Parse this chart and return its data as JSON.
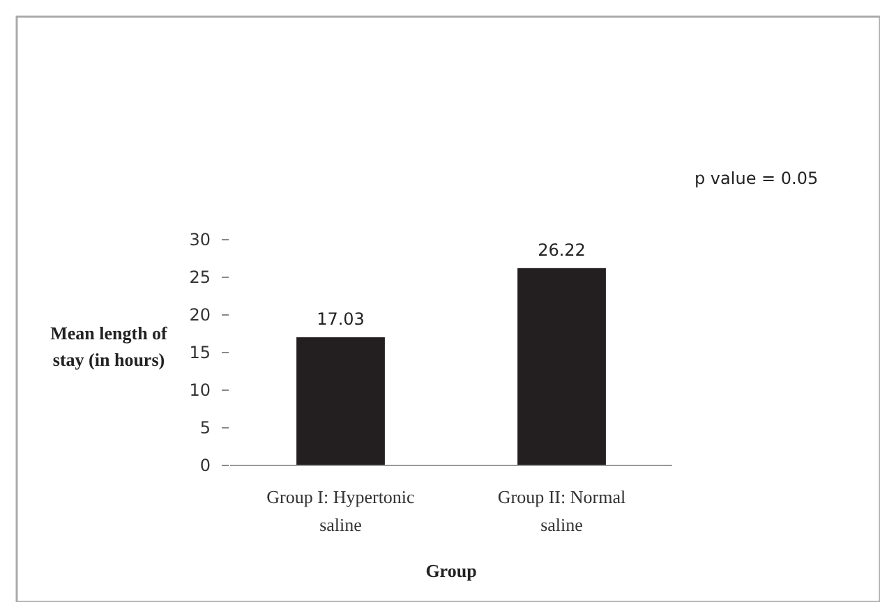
{
  "chart_data": {
    "type": "bar",
    "xlabel": "Group",
    "ylabel": "Mean length of stay (in hours)",
    "categories": [
      "Group I: Hypertonic saline",
      "Group II: Normal saline"
    ],
    "values": [
      17.03,
      26.22
    ],
    "color": "#231f20",
    "ylim": [
      0,
      30
    ],
    "yticks": [
      0,
      5,
      10,
      15,
      20,
      25,
      30
    ],
    "grid": false,
    "data_labels": true,
    "annotations": [
      "p value = 0.05"
    ]
  }
}
